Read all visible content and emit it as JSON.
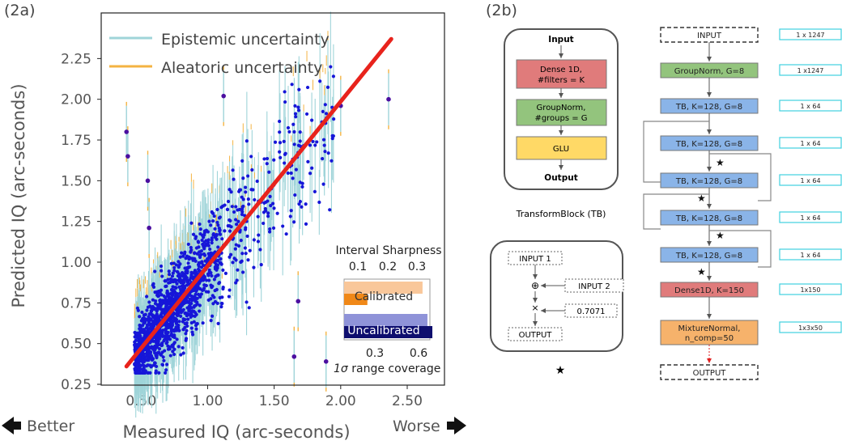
{
  "panel_a": {
    "label": "(2a)",
    "legend": [
      {
        "name": "Epistemic uncertainty",
        "color": "#9fd4d9"
      },
      {
        "name": "Aleatoric uncertainty",
        "color": "#f4b342"
      }
    ],
    "better_label": "Better",
    "worse_label": "Worse",
    "inset": {
      "title": "Interval Sharpness",
      "top_ticks": [
        "0.1",
        "0.2",
        "0.3"
      ],
      "bottom_ticks": [
        "0.3",
        "0.6"
      ],
      "calibrated_label": "Calibrated",
      "uncalibrated_label": "Uncalibrated",
      "xlabel_symbol": "1σ",
      "xlabel_rest": " range coverage",
      "calibrated_sharpness": 0.32,
      "calibrated_coverage": 0.19,
      "uncalibrated_sharpness": 0.34,
      "uncalibrated_coverage": 0.72
    }
  },
  "chart_data": {
    "type": "scatter",
    "xlabel": "Measured IQ (arc-seconds)",
    "ylabel": "Predicted IQ (arc-seconds)",
    "xlim": [
      0.2,
      2.78
    ],
    "ylim": [
      0.245,
      2.53
    ],
    "xticks": [
      "0.50",
      "1.00",
      "1.50",
      "2.00",
      "2.50"
    ],
    "yticks": [
      "0.25",
      "0.50",
      "0.75",
      "1.00",
      "1.25",
      "1.50",
      "1.75",
      "2.00",
      "2.25"
    ],
    "fit_line": {
      "x": [
        0.39,
        2.38
      ],
      "y": [
        0.36,
        2.37
      ],
      "color": "#e8231c"
    },
    "point_color": "#1616d8",
    "highlight_color": "#4b0fa0",
    "outliers": [
      {
        "x": 0.39,
        "y": 1.8
      },
      {
        "x": 0.4,
        "y": 1.65
      },
      {
        "x": 0.55,
        "y": 1.5
      },
      {
        "x": 0.56,
        "y": 1.21
      },
      {
        "x": 1.12,
        "y": 2.02
      },
      {
        "x": 1.65,
        "y": 0.42
      },
      {
        "x": 1.68,
        "y": 0.76
      },
      {
        "x": 1.89,
        "y": 0.39
      },
      {
        "x": 2.0,
        "y": 1.96
      },
      {
        "x": 2.36,
        "y": 2.0
      }
    ]
  },
  "panel_b": {
    "label": "(2b)",
    "tb_box": {
      "input": "Input",
      "output": "Output",
      "dense": [
        "Dense 1D,",
        "#filters = K"
      ],
      "groupnorm": [
        "GroupNorm,",
        "#groups = G"
      ],
      "glu": "GLU",
      "caption": "TransformBlock (TB)"
    },
    "star_box": {
      "input1": "INPUT 1",
      "input2": "INPUT 2",
      "plus": "⊕",
      "times": "×",
      "const": "0.7071",
      "output": "OUTPUT",
      "caption": "★"
    },
    "arch": [
      {
        "label": [
          "INPUT"
        ],
        "shape": "1 x 1247",
        "kind": "io"
      },
      {
        "label": [
          "GroupNorm, G=8"
        ],
        "shape": "1 x1247",
        "kind": "green"
      },
      {
        "label": [
          "TB, K=128, G=8"
        ],
        "shape": "1 x 64",
        "kind": "blue"
      },
      {
        "label": [
          "TB, K=128, G=8"
        ],
        "shape": "1 x 64",
        "kind": "blue"
      },
      {
        "label": [
          "TB, K=128, G=8"
        ],
        "shape": "1 x 64",
        "kind": "blue"
      },
      {
        "label": [
          "TB, K=128, G=8"
        ],
        "shape": "1 x 64",
        "kind": "blue"
      },
      {
        "label": [
          "TB, K=128, G=8"
        ],
        "shape": "1 x 64",
        "kind": "blue"
      },
      {
        "label": [
          "Dense1D, K=150"
        ],
        "shape": "1x150",
        "kind": "red"
      },
      {
        "label": [
          "MixtureNormal,",
          "n_comp=50"
        ],
        "shape": "1x3x50",
        "kind": "orange"
      },
      {
        "label": [
          "OUTPUT"
        ],
        "shape": "",
        "kind": "io"
      }
    ],
    "star_symbol": "★"
  }
}
